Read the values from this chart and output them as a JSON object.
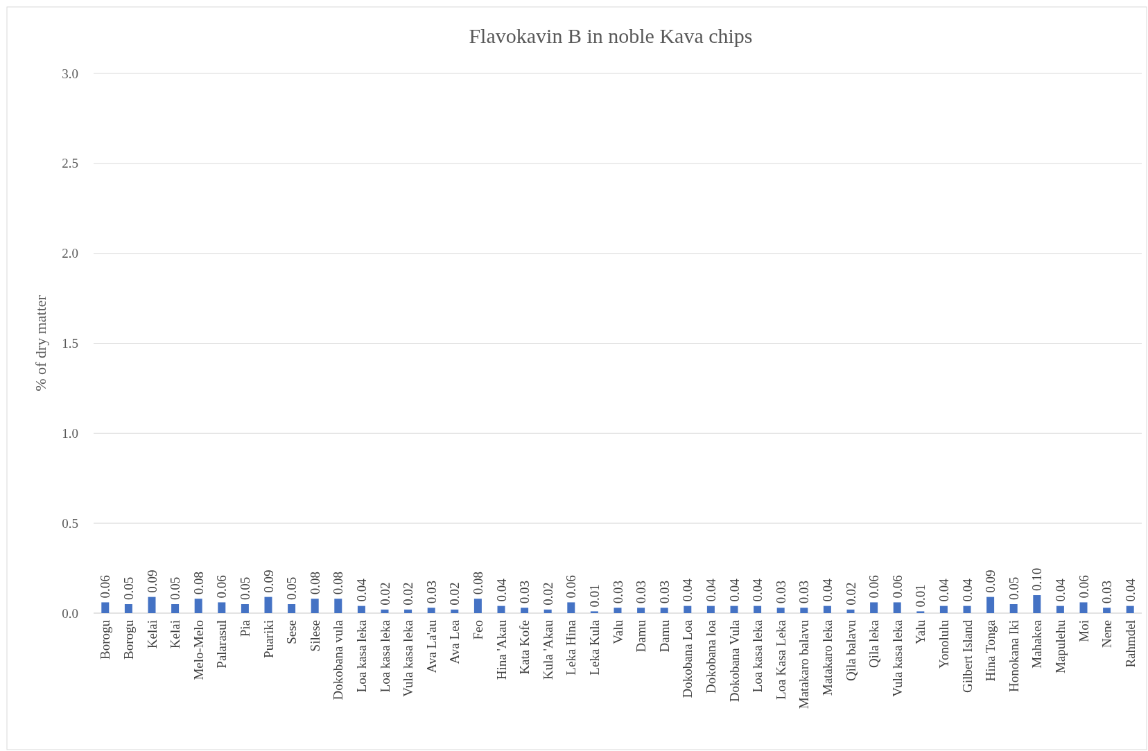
{
  "chart_data": {
    "type": "bar",
    "title": "Flavokavin B in noble Kava chips",
    "ylabel": "% of dry matter",
    "categories": [
      "Borogu",
      "Borogu",
      "Kelai",
      "Kelai",
      "Melo-Melo",
      "Palarasul",
      "Pia",
      "Puariki",
      "Sese",
      "Silese",
      "Dokobana vula",
      "Loa kasa leka",
      "Loa kasa leka",
      "Vula kasa leka",
      "Ava La'au",
      "Ava Lea",
      "Feo",
      "Hina 'Akau",
      "Kata Kofe",
      "Kula 'Akau",
      "Leka Hina",
      "Leka Kula",
      "Valu",
      "Damu",
      "Damu",
      "Dokobana Loa",
      "Dokobana loa",
      "Dokobana Vula",
      "Loa kasa leka",
      "Loa Kasa Leka",
      "Matakaro balavu",
      "Matakaro leka",
      "Qila balavu",
      "Qila leka",
      "Vula kasa leka",
      "Yalu",
      "Yonolulu",
      "Gilbert Island",
      "Hina Tonga",
      "Honokana Iki",
      "Mahakea",
      "Mapulehu",
      "Moi",
      "Nene",
      "Rahmdel"
    ],
    "values": [
      0.06,
      0.05,
      0.09,
      0.05,
      0.08,
      0.06,
      0.05,
      0.09,
      0.05,
      0.08,
      0.08,
      0.04,
      0.02,
      0.02,
      0.03,
      0.02,
      0.08,
      0.04,
      0.03,
      0.02,
      0.06,
      0.01,
      0.03,
      0.03,
      0.03,
      0.04,
      0.04,
      0.04,
      0.04,
      0.03,
      0.03,
      0.04,
      0.02,
      0.06,
      0.06,
      0.01,
      0.04,
      0.04,
      0.09,
      0.05,
      0.1,
      0.04,
      0.06,
      0.03,
      0.04
    ],
    "value_labels": [
      "0.06",
      "0.05",
      "0.09",
      "0.05",
      "0.08",
      "0.06",
      "0.05",
      "0.09",
      "0.05",
      "0.08",
      "0.08",
      "0.04",
      "0.02",
      "0.02",
      "0.03",
      "0.02",
      "0.08",
      "0.04",
      "0.03",
      "0.02",
      "0.06",
      "0.01",
      "0.03",
      "0.03",
      "0.03",
      "0.04",
      "0.04",
      "0.04",
      "0.04",
      "0.03",
      "0.03",
      "0.04",
      "0.02",
      "0.06",
      "0.06",
      "0.01",
      "0.04",
      "0.04",
      "0.09",
      "0.05",
      "0.10",
      "0.04",
      "0.06",
      "0.03",
      "0.04"
    ],
    "color": "#4472c4",
    "ylim": [
      0,
      3
    ],
    "yticks": [
      {
        "value": 0,
        "label": "0.0"
      },
      {
        "value": 0.5,
        "label": "0.5"
      },
      {
        "value": 1,
        "label": "1.0"
      },
      {
        "value": 1.5,
        "label": "1.5"
      },
      {
        "value": 2,
        "label": "2.0"
      },
      {
        "value": 2.5,
        "label": "2.5"
      },
      {
        "value": 3,
        "label": "3.0"
      }
    ],
    "grid": "y"
  }
}
